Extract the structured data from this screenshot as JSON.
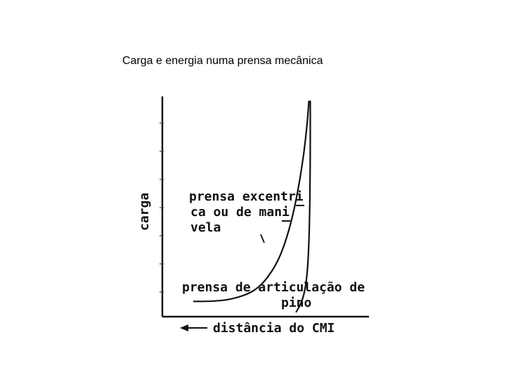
{
  "slide": {
    "title": "Carga e energia numa prensa mecânica"
  },
  "chart_data": {
    "type": "line",
    "title": "",
    "xlabel": "distância do CMI",
    "ylabel": "carga",
    "x_direction": "decreasing to the right (arrow points left)",
    "grid": false,
    "legend": "none",
    "series": [
      {
        "name": "prensa excêntrica ou de manivela",
        "label_lines": [
          "prensa excentri",
          "ca ou de mani",
          "vela"
        ],
        "points": [
          [
            0.0,
            0.07
          ],
          [
            0.15,
            0.07
          ],
          [
            0.3,
            0.08
          ],
          [
            0.45,
            0.11
          ],
          [
            0.55,
            0.16
          ],
          [
            0.65,
            0.25
          ],
          [
            0.72,
            0.36
          ],
          [
            0.78,
            0.5
          ],
          [
            0.83,
            0.66
          ],
          [
            0.87,
            0.84
          ],
          [
            0.89,
            0.99
          ]
        ]
      },
      {
        "name": "prensa de articulação de pino",
        "label_lines": [
          "prensa de articulação de",
          "pino"
        ],
        "points": [
          [
            0.79,
            0.02
          ],
          [
            0.83,
            0.06
          ],
          [
            0.86,
            0.12
          ],
          [
            0.88,
            0.22
          ],
          [
            0.89,
            0.34
          ],
          [
            0.895,
            0.47
          ],
          [
            0.898,
            0.6
          ],
          [
            0.9,
            0.74
          ],
          [
            0.9,
            0.87
          ],
          [
            0.9,
            0.99
          ]
        ]
      }
    ],
    "colors": {
      "ink": "#111111",
      "background": "#ffffff"
    }
  }
}
